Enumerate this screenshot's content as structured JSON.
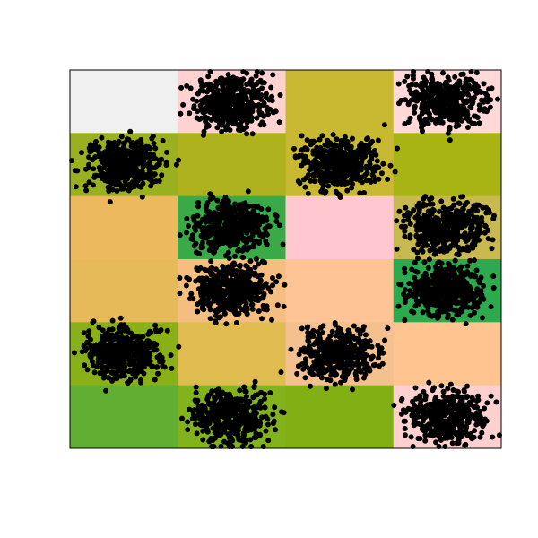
{
  "chart_data": {
    "type": "heatmap",
    "overlay": "scatter",
    "title": "",
    "xlabel": "",
    "ylabel": "",
    "xlim": [
      0,
      4
    ],
    "ylim": [
      0,
      6
    ],
    "grid": false,
    "legend": "none",
    "point_color": "#000000",
    "cells": [
      {
        "col": 0,
        "row": 0,
        "color": "#F0F0F0",
        "points": false
      },
      {
        "col": 1,
        "row": 0,
        "color": "#FFD2D2",
        "points": true
      },
      {
        "col": 2,
        "row": 0,
        "color": "#C8B832",
        "points": false
      },
      {
        "col": 3,
        "row": 0,
        "color": "#FFD8D8",
        "points": true
      },
      {
        "col": 0,
        "row": 1,
        "color": "#9AB020",
        "points": true
      },
      {
        "col": 1,
        "row": 1,
        "color": "#AEB21E",
        "points": false
      },
      {
        "col": 2,
        "row": 1,
        "color": "#C8B832",
        "points": true
      },
      {
        "col": 3,
        "row": 1,
        "color": "#A8B414",
        "points": false
      },
      {
        "col": 0,
        "row": 2,
        "color": "#EDB95E",
        "points": false
      },
      {
        "col": 1,
        "row": 2,
        "color": "#3AAA48",
        "points": true
      },
      {
        "col": 2,
        "row": 2,
        "color": "#FFC8D0",
        "points": false
      },
      {
        "col": 3,
        "row": 2,
        "color": "#C8B850",
        "points": true
      },
      {
        "col": 0,
        "row": 3,
        "color": "#E6BA58",
        "points": false
      },
      {
        "col": 1,
        "row": 3,
        "color": "#F4BE80",
        "points": true
      },
      {
        "col": 2,
        "row": 3,
        "color": "#FFC496",
        "points": false
      },
      {
        "col": 3,
        "row": 3,
        "color": "#2EAA4E",
        "points": true
      },
      {
        "col": 0,
        "row": 4,
        "color": "#8AB018",
        "points": true
      },
      {
        "col": 1,
        "row": 4,
        "color": "#E0BC50",
        "points": false
      },
      {
        "col": 2,
        "row": 4,
        "color": "#F4C090",
        "points": true
      },
      {
        "col": 3,
        "row": 4,
        "color": "#FFC490",
        "points": false
      },
      {
        "col": 0,
        "row": 5,
        "color": "#62AE32",
        "points": false
      },
      {
        "col": 1,
        "row": 5,
        "color": "#82B21C",
        "points": true
      },
      {
        "col": 2,
        "row": 5,
        "color": "#82B014",
        "points": false
      },
      {
        "col": 3,
        "row": 5,
        "color": "#FFD0D0",
        "points": true
      }
    ],
    "points_per_cell": 420
  }
}
